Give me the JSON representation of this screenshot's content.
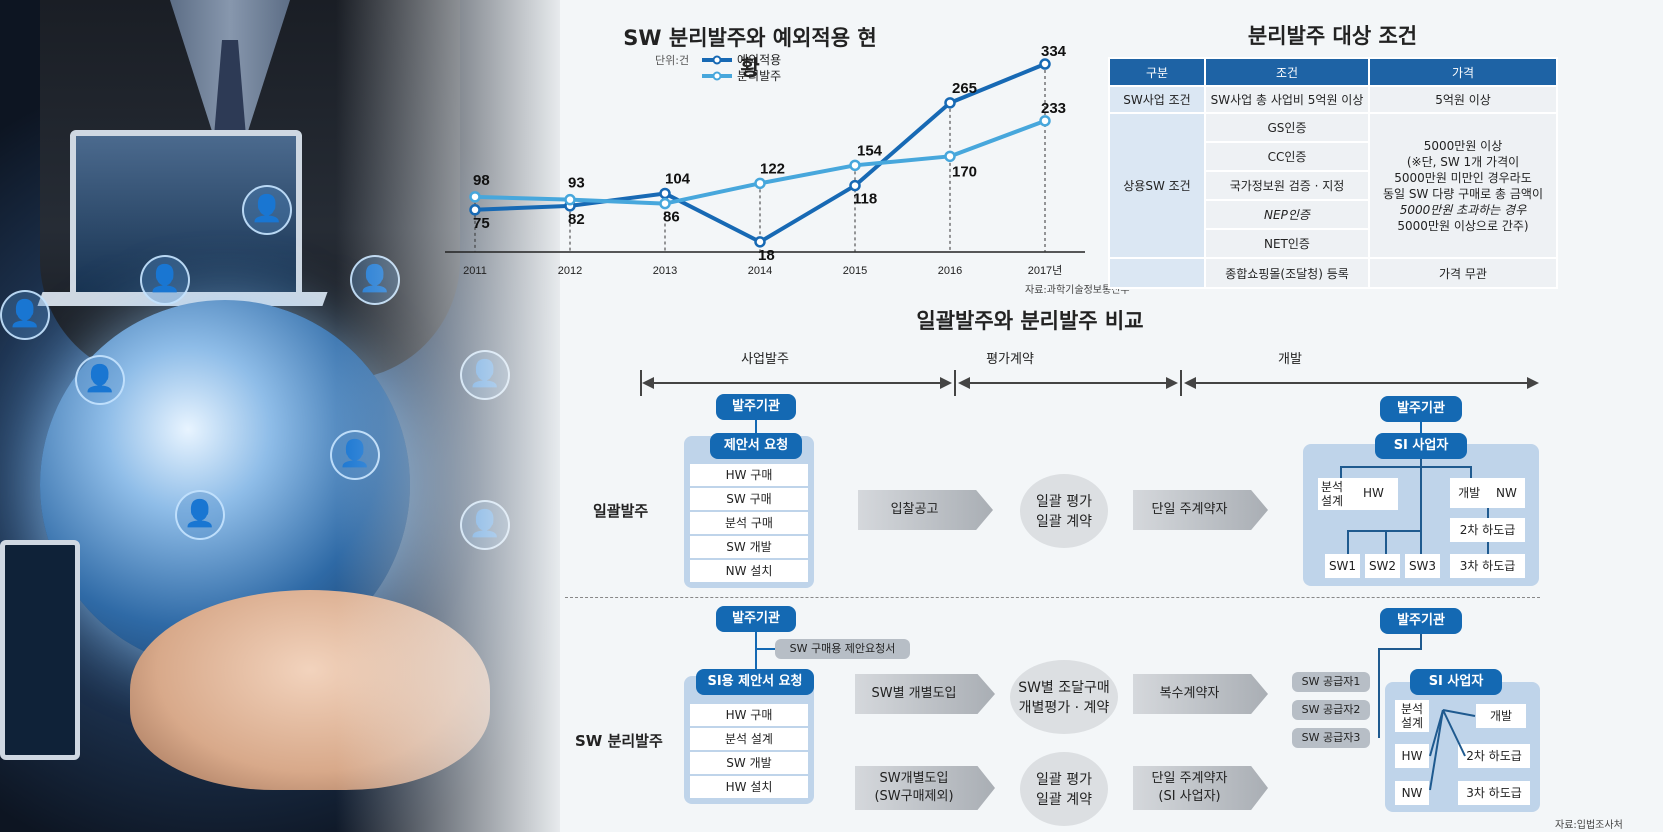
{
  "chart_data": {
    "type": "line",
    "title": "SW 분리발주와 예외적용 현황",
    "unit": "단위:건",
    "categories": [
      "2011",
      "2012",
      "2013",
      "2014",
      "2015",
      "2016",
      "2017년"
    ],
    "series": [
      {
        "name": "예외적용",
        "values": [
          75,
          82,
          104,
          18,
          118,
          265,
          334
        ],
        "color": "#1769b4"
      },
      {
        "name": "분리발주",
        "values": [
          98,
          93,
          86,
          122,
          154,
          170,
          233
        ],
        "color": "#47a7dc"
      }
    ],
    "value_labels": {
      "예외적용": [
        "75",
        "82",
        "104",
        "18",
        "118",
        "265",
        "334"
      ],
      "분리발주": [
        "98",
        "93",
        "86",
        "122",
        "154",
        "170",
        "233"
      ]
    },
    "ylim": [
      0,
      350
    ],
    "source": "자료:과학기술정보통신부"
  },
  "table": {
    "title": "분리발주 대상 조건",
    "headers": [
      "구분",
      "조건",
      "가격"
    ],
    "row1": {
      "cat": "SW사업 조건",
      "cond": "SW사업 총 사업비 5억원 이상",
      "price": "5억원 이상"
    },
    "cat2": "상용SW 조건",
    "conds": [
      "GS인증",
      "CC인증",
      "국가정보원 검증 · 지정",
      "NEP인증",
      "NET인증"
    ],
    "price2": [
      "5000만원 이상",
      "(※단, SW 1개 가격이",
      "5000만원 미만인 경우라도",
      "동일 SW 다량 구매로 총 금액이",
      "5000만원 초과하는 경우",
      "5000만원 이상으로 간주)"
    ],
    "last_cond": "종합쇼핑몰(조달청) 등록",
    "last_price": "가격 무관"
  },
  "compare": {
    "title": "일괄발주와 분리발주 비교",
    "phases": [
      "사업발주",
      "평가계약",
      "개발"
    ],
    "row1": {
      "label": "일괄발주",
      "org": "발주기관",
      "rfp": "제안서 요청",
      "items": [
        "HW 구매",
        "SW 구매",
        "분석 구매",
        "SW 개발",
        "NW 설치"
      ],
      "arrow1": "입찰공고",
      "circle": [
        "일괄 평가",
        "일괄 계약"
      ],
      "arrow2": "단일 주계약자",
      "right_org": "발주기관",
      "si": "SI 사업자",
      "analysis": [
        "분석",
        "설계"
      ],
      "hw": "HW",
      "dev": "개발",
      "nw": "NW",
      "sub2": "2차 하도급",
      "sub3": "3차 하도급",
      "sws": [
        "SW1",
        "SW2",
        "SW3"
      ]
    },
    "row2": {
      "label": "SW 분리발주",
      "org": "발주기관",
      "sw_rfp": "SW 구매용 제안요청서",
      "rfp": "SI용 제안서 요청",
      "items": [
        "HW 구매",
        "분석 설계",
        "SW 개발",
        "HW 설치"
      ],
      "arrow1": "SW별 개별도입",
      "circle1": [
        "SW별 조달구매",
        "개별평가 · 계약"
      ],
      "arrow2": "복수계약자",
      "arrow3": [
        "SW개별도입",
        "(SW구매제외)"
      ],
      "circle2": [
        "일괄 평가",
        "일괄 계약"
      ],
      "arrow4": [
        "단일 주계약자",
        "(SI 사업자)"
      ],
      "right_org": "발주기관",
      "suppliers": [
        "SW 공급자1",
        "SW 공급자2",
        "SW 공급자3"
      ],
      "si": "SI 사업자",
      "analysis": [
        "분석",
        "설계"
      ],
      "dev": "개발",
      "hw": "HW",
      "nw": "NW",
      "sub2": "2차 하도급",
      "sub3": "3차 하도급"
    },
    "source": "자료:입법조사처"
  }
}
